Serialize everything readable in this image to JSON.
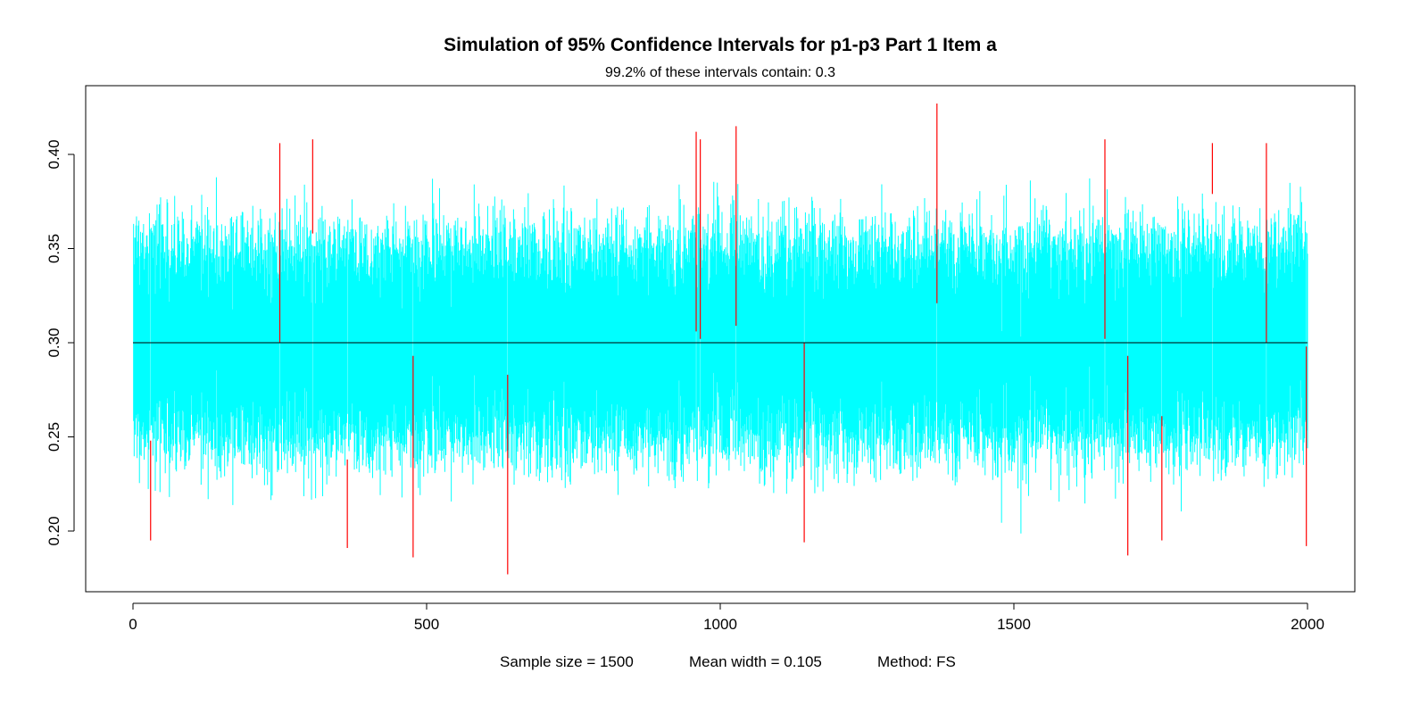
{
  "chart_data": {
    "type": "confidence-interval-simulation",
    "title": "Simulation of 95% Confidence Intervals for p1-p3 Part 1 Item a",
    "subtitle": "99.2% of these intervals contain: 0.3",
    "true_value": 0.3,
    "n_intervals": 2000,
    "coverage_percent": 99.2,
    "xlim": [
      0,
      2000
    ],
    "ylim": [
      0.175,
      0.43
    ],
    "x_ticks": [
      0,
      500,
      1000,
      1500,
      2000
    ],
    "x_tick_labels": [
      "0",
      "500",
      "1000",
      "1500",
      "2000"
    ],
    "y_ticks": [
      0.2,
      0.25,
      0.3,
      0.35,
      0.4
    ],
    "y_tick_labels": [
      "0.20",
      "0.25",
      "0.30",
      "0.35",
      "0.40"
    ],
    "footer": {
      "sample_size": "Sample size =  1500",
      "mean_width": "Mean width =  0.105",
      "method": "Method:  FS"
    },
    "colors": {
      "covering_interval": "#00ffff",
      "missing_interval": "#ff0000",
      "reference_line": "#000000"
    },
    "highlighted_intervals": [
      {
        "index": 30,
        "lower": 0.195,
        "upper": 0.248,
        "contains": false
      },
      {
        "index": 250,
        "lower": 0.3,
        "upper": 0.406,
        "contains": false
      },
      {
        "index": 306,
        "lower": 0.358,
        "upper": 0.408,
        "contains": false
      },
      {
        "index": 365,
        "lower": 0.191,
        "upper": 0.238,
        "contains": false
      },
      {
        "index": 477,
        "lower": 0.186,
        "upper": 0.293,
        "contains": false
      },
      {
        "index": 638,
        "lower": 0.177,
        "upper": 0.283,
        "contains": false
      },
      {
        "index": 959,
        "lower": 0.306,
        "upper": 0.412,
        "contains": false
      },
      {
        "index": 966,
        "lower": 0.302,
        "upper": 0.408,
        "contains": false
      },
      {
        "index": 1027,
        "lower": 0.309,
        "upper": 0.415,
        "contains": false
      },
      {
        "index": 1143,
        "lower": 0.194,
        "upper": 0.3,
        "contains": false
      },
      {
        "index": 1369,
        "lower": 0.321,
        "upper": 0.427,
        "contains": false
      },
      {
        "index": 1655,
        "lower": 0.302,
        "upper": 0.408,
        "contains": false
      },
      {
        "index": 1694,
        "lower": 0.187,
        "upper": 0.293,
        "contains": false
      },
      {
        "index": 1752,
        "lower": 0.195,
        "upper": 0.261,
        "contains": false
      },
      {
        "index": 1838,
        "lower": 0.379,
        "upper": 0.406,
        "contains": false
      },
      {
        "index": 1930,
        "lower": 0.3,
        "upper": 0.406,
        "contains": false
      },
      {
        "index": 1998,
        "lower": 0.192,
        "upper": 0.298,
        "contains": false
      }
    ]
  }
}
